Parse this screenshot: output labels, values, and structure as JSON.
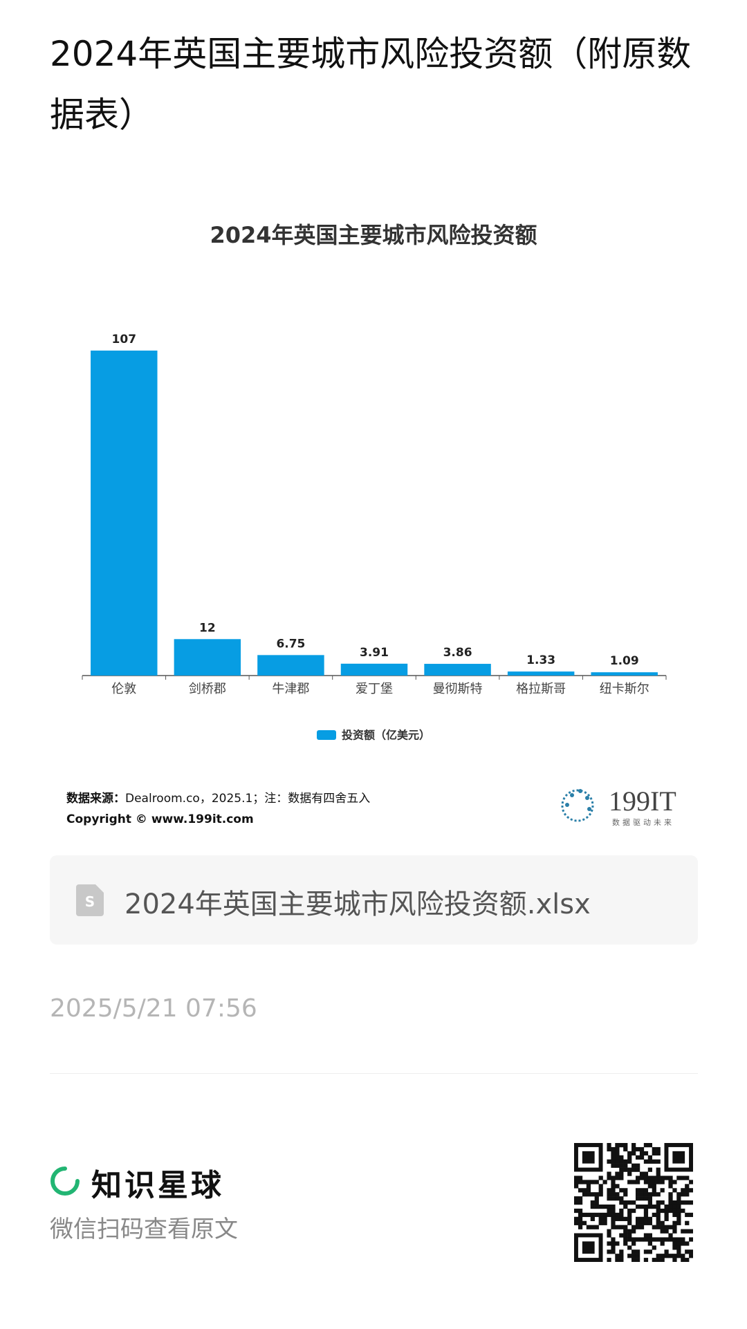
{
  "header": {
    "title": "2024年英国主要城市风险投资额（附原数据表）"
  },
  "chart_data": {
    "type": "bar",
    "title": "2024年英国主要城市风险投资额",
    "categories": [
      "伦敦",
      "剑桥郡",
      "牛津郡",
      "爱丁堡",
      "曼彻斯特",
      "格拉斯哥",
      "纽卡斯尔"
    ],
    "series": [
      {
        "name": "投资额（亿美元）",
        "color": "#079de3",
        "values": [
          107,
          12,
          6.75,
          3.91,
          3.86,
          1.33,
          1.09
        ]
      }
    ],
    "legend": "bottom"
  },
  "source": {
    "label": "数据来源：",
    "text": "Dealroom.co，2025.1；注：数据有四舍五入",
    "copyright": "Copyright ©  www.199it.com"
  },
  "logo": {
    "name": "199IT",
    "slogan": "数据驱动未来"
  },
  "attachment": {
    "file_name": "2024年英国主要城市风险投资额.xlsx"
  },
  "date": "2025/5/21 07:56",
  "footer": {
    "brand": "知识星球",
    "hint": "微信扫码查看原文"
  }
}
